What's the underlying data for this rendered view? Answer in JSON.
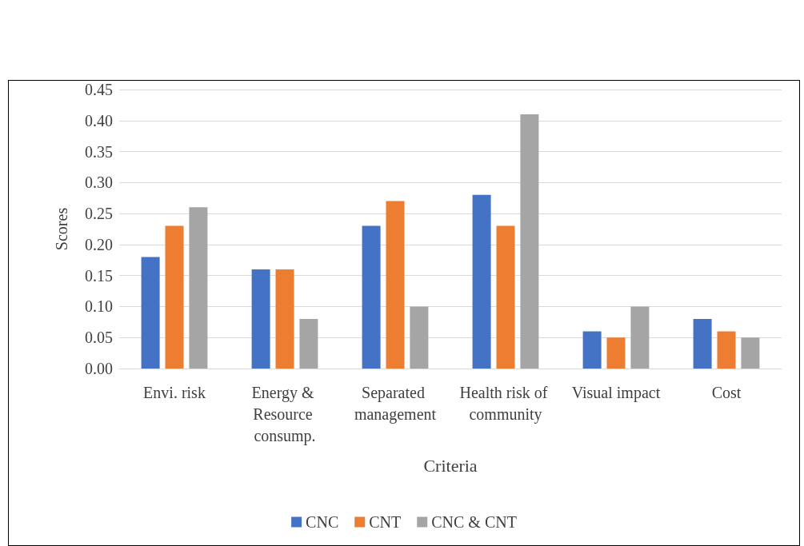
{
  "chart_data": {
    "type": "bar",
    "xlabel": "Criteria",
    "ylabel": "Scores",
    "categories": [
      "Envi. risk",
      "Energy & Resource consump.",
      "Separated management",
      "Health risk of community",
      "Visual impact",
      "Cost"
    ],
    "series": [
      {
        "name": "CNC",
        "color": "#4472c4",
        "values": [
          0.18,
          0.16,
          0.23,
          0.28,
          0.06,
          0.08
        ]
      },
      {
        "name": "CNT",
        "color": "#ed7d31",
        "values": [
          0.23,
          0.16,
          0.27,
          0.23,
          0.05,
          0.06
        ]
      },
      {
        "name": "CNC & CNT",
        "color": "#a5a5a5",
        "values": [
          0.26,
          0.08,
          0.1,
          0.41,
          0.1,
          0.05
        ]
      }
    ],
    "ylim": [
      0,
      0.45
    ],
    "yticks": [
      {
        "value": 0,
        "label": "0.00"
      },
      {
        "value": 0.05,
        "label": "0.05"
      },
      {
        "value": 0.1,
        "label": "0.10"
      },
      {
        "value": 0.15,
        "label": "0.15"
      },
      {
        "value": 0.2,
        "label": "0.20"
      },
      {
        "value": 0.25,
        "label": "0.25"
      },
      {
        "value": 0.3,
        "label": "0.30"
      },
      {
        "value": 0.35,
        "label": "0.35"
      },
      {
        "value": 0.4,
        "label": "0.40"
      },
      {
        "value": 0.45,
        "label": "0.45"
      }
    ],
    "grid": "y",
    "legend": "bottom"
  }
}
